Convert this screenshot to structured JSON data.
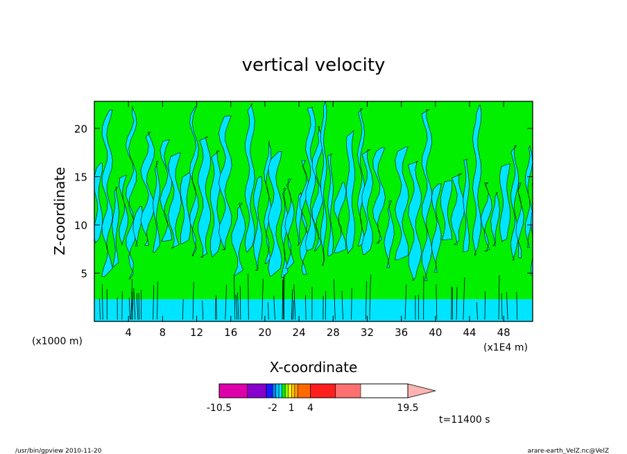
{
  "chart_data": {
    "type": "heatmap",
    "title": "vertical velocity",
    "xlabel": "X-coordinate",
    "ylabel": "Z-coordinate",
    "x_unit": "(x1E4 m)",
    "y_unit": "(x1000 m)",
    "xlim": [
      0,
      51.4
    ],
    "ylim": [
      0,
      22.8
    ],
    "x_ticks": [
      4,
      8,
      12,
      16,
      20,
      24,
      28,
      32,
      36,
      40,
      44,
      48
    ],
    "y_ticks": [
      5,
      10,
      15,
      20
    ],
    "field_colors": {
      "negative": "#00e5ff",
      "positive": "#00f000"
    },
    "colorbar": {
      "levels": [
        -10.5,
        -6,
        -3,
        -2,
        -1.5,
        -1,
        -0.5,
        0,
        0.5,
        1,
        1.5,
        2,
        4,
        8,
        12,
        19.5
      ],
      "tick_labels": [
        "-10.5",
        "-2",
        "1",
        "4",
        "19.5"
      ],
      "tick_values": [
        -10.5,
        -2,
        1,
        4,
        19.5
      ],
      "colors": [
        "#dd00aa",
        "#8800cc",
        "#1a1aff",
        "#0080ff",
        "#00c8ff",
        "#00e5ff",
        "#00f000",
        "#a0ff00",
        "#ffff00",
        "#ffc800",
        "#ff9600",
        "#ff6a00",
        "#ff1e1e",
        "#ff7070"
      ],
      "extend_color": "#ffb3b3"
    },
    "time_label": "t=11400 s"
  },
  "footer": {
    "left": "/usr/bin/gpview  2010-11-20",
    "right": "arare-earth_VelZ.nc@VelZ"
  }
}
